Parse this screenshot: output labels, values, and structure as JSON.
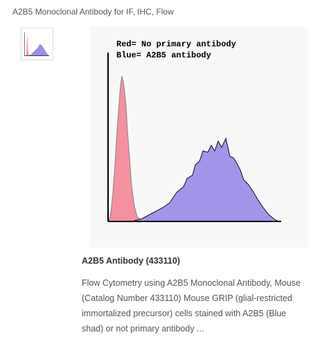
{
  "header": {
    "title": "A2B5 Monoclonal Antibody for IF, IHC, Flow"
  },
  "figure": {
    "legend": [
      "Red= No primary antibody",
      "Blue= A2B5 antibody"
    ]
  },
  "caption": {
    "title": "A2B5 Antibody (433110)",
    "lines": [
      "Flow Cytometry using A2B5 Monoclonal Antibody, Mouse",
      "(Catalog Number 433110) Mouse GRIP (glial-restricted",
      "immortalized precursor) cells stained with A2B5 (Blue",
      "shad) or not primary antibody ..."
    ]
  }
}
